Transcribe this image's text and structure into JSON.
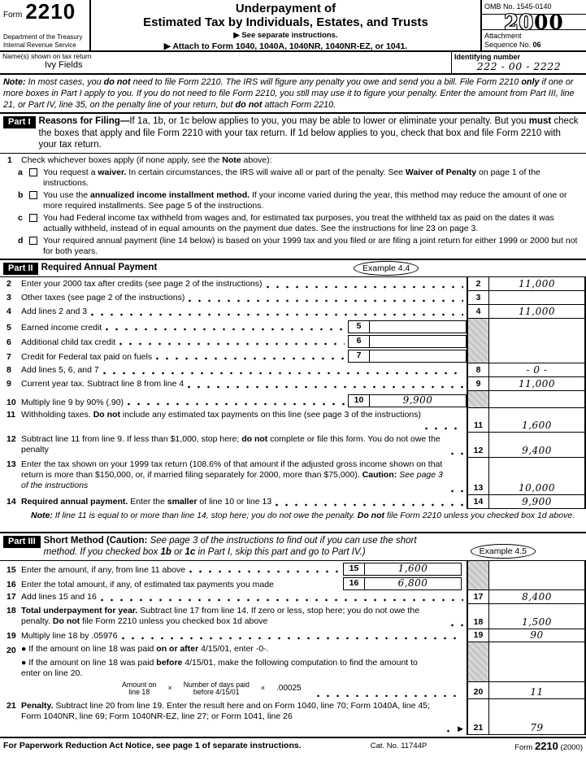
{
  "header": {
    "form_label": "Form",
    "form_number": "2210",
    "dept1": "Department of the Treasury",
    "dept2": "Internal Revenue Service",
    "title1": "Underpayment of",
    "title2": "Estimated Tax by Individuals, Estates, and Trusts",
    "see_sep": "▶ See separate instructions.",
    "attach": "▶ Attach to Form 1040, 1040A, 1040NR, 1040NR-EZ, or 1041.",
    "omb": "OMB No. 1545-0140",
    "year_left": "20",
    "year_right": "00",
    "attachment_label": "Attachment",
    "sequence_label": "Sequence No. ",
    "sequence_value": "06"
  },
  "taxpayer": {
    "name_label": "Name(s) shown on tax return",
    "name_value": "Ivy Fields",
    "id_label": "Identifying number",
    "id_value": "222 - 00 - 2222"
  },
  "note_rich": [
    {
      "t": "Note: ",
      "b": true
    },
    {
      "t": "In most cases, you "
    },
    {
      "t": "do not",
      "b": true
    },
    {
      "t": " need to file Form 2210. The IRS will figure any penalty you owe and send you a bill. File Form 2210 "
    },
    {
      "t": "only",
      "b": true
    },
    {
      "t": " if one or more boxes in Part I apply to you. If you do not need to file Form 2210, you still may use it to figure your penalty. Enter the amount from Part III, line 21, or Part IV, line 35, on the penalty line of your return, but "
    },
    {
      "t": "do not",
      "b": true
    },
    {
      "t": " attach Form 2210."
    }
  ],
  "part1": {
    "bar": "Part I",
    "heading_rich": [
      {
        "t": "Reasons for Filing—",
        "b": true
      },
      {
        "t": "If 1a, 1b, or 1c below applies to you, you may be able to lower or eliminate your penalty. But you "
      },
      {
        "t": "must",
        "b": true
      },
      {
        "t": " check the boxes that apply and file Form 2210 with your tax return. If 1d below applies to you, check that box and file Form 2210 with your tax return."
      }
    ],
    "line1_num": "1",
    "line1_rich": [
      {
        "t": "Check whichever boxes apply (if none apply, see the "
      },
      {
        "t": "Note",
        "b": true
      },
      {
        "t": " above):"
      }
    ],
    "items": [
      {
        "letter": "a",
        "checked": false,
        "rich": [
          {
            "t": "You request a "
          },
          {
            "t": "waiver.",
            "b": true
          },
          {
            "t": " In certain circumstances, the IRS will waive all or part of the penalty. See "
          },
          {
            "t": "Waiver of Penalty",
            "b": true
          },
          {
            "t": " on page 1 of the instructions."
          }
        ]
      },
      {
        "letter": "b",
        "checked": false,
        "rich": [
          {
            "t": "You use the "
          },
          {
            "t": "annualized income installment method.",
            "b": true
          },
          {
            "t": " If your income varied during the year, this method may reduce the amount of one or more required installments. See page 5 of the instructions."
          }
        ]
      },
      {
        "letter": "c",
        "checked": false,
        "rich": [
          {
            "t": "You had Federal income tax withheld from wages and, for estimated tax purposes, you treat the withheld tax as paid on the dates it was actually withheld, instead of in equal amounts on the payment due dates. See the instructions for line 23 on page 3."
          }
        ]
      },
      {
        "letter": "d",
        "checked": false,
        "rich": [
          {
            "t": "Your required annual payment (line 14 below) is based on your 1999 tax and you filed or are filing a joint return for either 1999 or 2000 but not for both years."
          }
        ]
      }
    ]
  },
  "part2": {
    "bar": "Part II",
    "title": "Required Annual Payment",
    "example": "Example 4.4",
    "rows": {
      "r2": {
        "num": "2",
        "text": "Enter your 2000 tax after credits (see page 2 of the instructions)",
        "cell": "2",
        "value": "11,000"
      },
      "r3": {
        "num": "3",
        "text": "Other taxes (see page 2 of the instructions)",
        "cell": "3",
        "value": ""
      },
      "r4": {
        "num": "4",
        "text": "Add lines 2 and 3",
        "cell": "4",
        "value": "11,000"
      },
      "r5": {
        "num": "5",
        "text": "Earned income credit",
        "cell": "5",
        "value": ""
      },
      "r6": {
        "num": "6",
        "text": "Additional child tax credit",
        "cell": "6",
        "value": ""
      },
      "r7": {
        "num": "7",
        "text": "Credit for Federal tax paid on fuels",
        "cell": "7",
        "value": ""
      },
      "r8": {
        "num": "8",
        "text": "Add lines 5, 6, and 7",
        "cell": "8",
        "value": "- 0 -"
      },
      "r9": {
        "num": "9",
        "text": "Current year tax. Subtract line 8 from line 4",
        "cell": "9",
        "value": "11,000"
      },
      "r10": {
        "num": "10",
        "text": "Multiply line 9 by 90% (.90)",
        "cell": "10",
        "value": "9,900"
      },
      "r11": {
        "num": "11",
        "cell": "11",
        "value": "1,600",
        "rich": [
          {
            "t": "Withholding taxes. "
          },
          {
            "t": "Do not",
            "b": true
          },
          {
            "t": " include any estimated tax payments on this line (see page 3 of the instructions)"
          }
        ]
      },
      "r12": {
        "num": "12",
        "cell": "12",
        "value": "9,400",
        "rich": [
          {
            "t": "Subtract line 11 from line 9. If less than $1,000, stop here; "
          },
          {
            "t": "do not",
            "b": true
          },
          {
            "t": " complete or file this form. You do not owe the penalty"
          }
        ]
      },
      "r13": {
        "num": "13",
        "cell": "13",
        "value": "10,000",
        "rich": [
          {
            "t": "Enter the tax shown on your 1999 tax return (108.6% of that amount if the adjusted gross income shown on that return is more than $150,000, or, if married filing separately for 2000, more than $75,000). "
          },
          {
            "t": "Caution: ",
            "b": true
          },
          {
            "t": "See page 3 of the instructions",
            "i": true
          }
        ]
      },
      "r14": {
        "num": "14",
        "cell": "14",
        "value": "9,900",
        "rich": [
          {
            "t": "Required annual payment.",
            "b": true
          },
          {
            "t": " Enter the "
          },
          {
            "t": "smaller",
            "b": true
          },
          {
            "t": " of line 10 or line 13"
          }
        ]
      },
      "note_rich": [
        {
          "t": "Note: ",
          "b": true,
          "i": true
        },
        {
          "t": "If line 11 is equal to or more than line 14, stop here; you do not owe the penalty. ",
          "i": true
        },
        {
          "t": "Do not",
          "b": true,
          "i": true
        },
        {
          "t": " file Form 2210 unless you checked box 1d above.",
          "i": true
        }
      ]
    }
  },
  "part3": {
    "bar": "Part III",
    "example": "Example 4.5",
    "heading_rich": [
      {
        "t": "Short Method (Caution: ",
        "b": true
      },
      {
        "t": "See page 3 of the instructions to find out if you can use the short method. If you checked box ",
        "i": true
      },
      {
        "t": "1b",
        "b": true,
        "i": true
      },
      {
        "t": " or ",
        "i": true
      },
      {
        "t": "1c",
        "b": true,
        "i": true
      },
      {
        "t": " in Part I, skip this part and go to Part IV.)",
        "i": true
      }
    ],
    "rows": {
      "r15": {
        "num": "15",
        "text": "Enter the amount, if any, from line 11 above",
        "cell": "15",
        "value": "1,600"
      },
      "r16": {
        "num": "16",
        "text": "Enter the total amount, if any, of estimated tax payments you made",
        "cell": "16",
        "value": "6,800"
      },
      "r17": {
        "num": "17",
        "text": "Add lines 15 and 16",
        "cell": "17",
        "value": "8,400"
      },
      "r18": {
        "num": "18",
        "cell": "18",
        "value": "1,500",
        "rich": [
          {
            "t": "Total underpayment for year.",
            "b": true
          },
          {
            "t": " Subtract line 17 from line 14. If zero or less, stop here; you do not owe the penalty. "
          },
          {
            "t": "Do not",
            "b": true
          },
          {
            "t": " file Form 2210 unless you checked box 1d above"
          }
        ]
      },
      "r19": {
        "num": "19",
        "text": "Multiply line 18 by .05976",
        "cell": "19",
        "value": "90"
      },
      "r20": {
        "num": "20",
        "cell": "20",
        "value": "11",
        "bullet1_rich": [
          {
            "t": "● If the amount on line 18 was paid "
          },
          {
            "t": "on or after",
            "b": true
          },
          {
            "t": " 4/15/01, enter -0-."
          }
        ],
        "bullet2_rich": [
          {
            "t": "● If the amount on line 18 was paid "
          },
          {
            "t": "before",
            "b": true
          },
          {
            "t": " 4/15/01, make the following computation to find the amount to enter on line 20."
          }
        ],
        "calc": {
          "amount_label1": "Amount on",
          "amount_label2": "line 18",
          "times1": "×",
          "days_label1": "Number of days paid",
          "days_label2": "before 4/15/01",
          "times2": "×",
          "rate": ".00025"
        }
      },
      "r21": {
        "num": "21",
        "cell": "21",
        "value": "79",
        "arrow": "▶",
        "rich": [
          {
            "t": "Penalty.",
            "b": true
          },
          {
            "t": " Subtract line 20 from line 19. Enter the result here and on Form 1040, line 70; Form 1040A, line 45; Form 1040NR, line 69; Form 1040NR-EZ, line 27; or Form 1041, line 26"
          }
        ]
      }
    }
  },
  "footer": {
    "paperwork": "For Paperwork Reduction Act Notice, see page 1 of separate instructions.",
    "cat": "Cat. No. 11744P",
    "form_word": "Form ",
    "form_number": "2210",
    "year": " (2000)"
  }
}
